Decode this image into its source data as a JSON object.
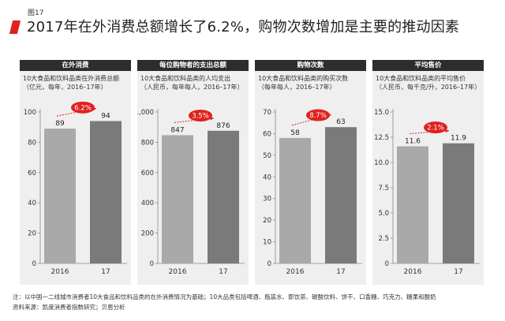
{
  "figure_label": "图17",
  "title": "2017年在外消费总额增长了6.2%，购物次数增加是主要的推动因素",
  "accent_color": "#e0211e",
  "bar_colors": [
    "#a9a9a9",
    "#7a7a7a"
  ],
  "footnotes": [
    "注：以中国一二线城市消费者10大食品和饮料品类的在外消费情况为基础；10大品类包括啤酒、瓶装水、即饮茶、碳酸饮料、饼干、口香糖、巧克力、糖果和酸奶",
    "资料来源：凯度消费者指数研究；贝恩分析"
  ],
  "chart_data": [
    {
      "type": "bar",
      "panel_title": "在外消费",
      "subtitle_lines": [
        "10大食品和饮料品类在外消费总额",
        "（亿元，每年，2016–17年）"
      ],
      "categories": [
        "2016",
        "17"
      ],
      "values": [
        89,
        94
      ],
      "value_labels": [
        "89",
        "94"
      ],
      "yticks": [
        "0",
        "20",
        "40",
        "60",
        "80",
        "100"
      ],
      "ylim": [
        0,
        100
      ],
      "growth_label": "6.2%"
    },
    {
      "type": "bar",
      "panel_title": "每位购物者的支出总额",
      "subtitle_lines": [
        "10大食品和饮料品类的人均支出",
        "（人民币，每年每人，2016–17年）"
      ],
      "categories": [
        "2016",
        "17"
      ],
      "values": [
        847,
        876
      ],
      "value_labels": [
        "847",
        "876"
      ],
      "yticks": [
        "0",
        "200",
        "400",
        "600",
        "800",
        "1,000"
      ],
      "ylim": [
        0,
        1000
      ],
      "growth_label": "3.5%"
    },
    {
      "type": "bar",
      "panel_title": "购物次数",
      "subtitle_lines": [
        "10大食品和饮料品类的购买次数",
        "（每年每人，2016–17年）"
      ],
      "categories": [
        "2016",
        "17"
      ],
      "values": [
        58,
        63
      ],
      "value_labels": [
        "58",
        "63"
      ],
      "yticks": [
        "0",
        "10",
        "20",
        "30",
        "40",
        "50",
        "60",
        "70"
      ],
      "ylim": [
        0,
        70
      ],
      "growth_label": "8.7%"
    },
    {
      "type": "bar",
      "panel_title": "平均售价",
      "subtitle_lines": [
        "10大食品和饮料品类的平均售价",
        "（人民币，每千克/升，2016–17年）"
      ],
      "categories": [
        "2016",
        "17"
      ],
      "values": [
        11.6,
        11.9
      ],
      "value_labels": [
        "11.6",
        "11.9"
      ],
      "yticks": [
        "0",
        "2.5",
        "5.0",
        "7.5",
        "10.0",
        "12.5",
        "15.0"
      ],
      "ylim": [
        0,
        15
      ],
      "growth_label": "2.1%"
    }
  ]
}
